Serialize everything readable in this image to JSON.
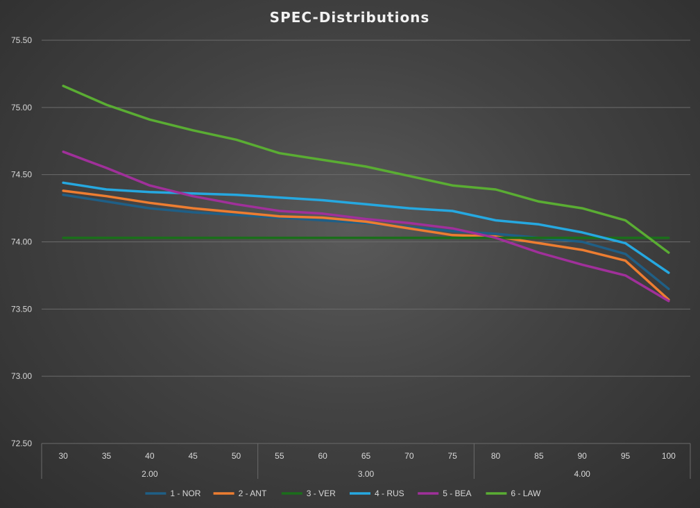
{
  "chart_data": {
    "type": "line",
    "title": "SPEC-Distributions",
    "xlabel": "",
    "ylabel": "",
    "ylim": [
      72.5,
      75.5
    ],
    "yticks": [
      "72.50",
      "73.00",
      "73.50",
      "74.00",
      "74.50",
      "75.00",
      "75.50"
    ],
    "categories": [
      "30",
      "35",
      "40",
      "45",
      "50",
      "55",
      "60",
      "65",
      "70",
      "75",
      "80",
      "85",
      "90",
      "95",
      "100"
    ],
    "groups": [
      {
        "label": "2.00",
        "start": 0,
        "end": 4
      },
      {
        "label": "3.00",
        "start": 5,
        "end": 9
      },
      {
        "label": "4.00",
        "start": 10,
        "end": 14
      }
    ],
    "grid": true,
    "legend_position": "bottom",
    "series": [
      {
        "name": "1 - NOR",
        "color": "#1f5f86",
        "values": [
          74.35,
          74.3,
          74.25,
          74.22,
          74.2,
          74.18,
          74.16,
          74.14,
          74.11,
          74.08,
          74.06,
          74.03,
          74.0,
          73.91,
          73.65
        ]
      },
      {
        "name": "2 - ANT",
        "color": "#ed7d31",
        "values": [
          74.38,
          74.34,
          74.29,
          74.25,
          74.22,
          74.19,
          74.18,
          74.15,
          74.1,
          74.05,
          74.04,
          73.99,
          73.94,
          73.86,
          73.57
        ]
      },
      {
        "name": "3 - VER",
        "color": "#1b6e1b",
        "values": [
          74.03,
          74.03,
          74.03,
          74.03,
          74.03,
          74.03,
          74.03,
          74.03,
          74.03,
          74.03,
          74.03,
          74.03,
          74.03,
          74.03,
          74.03
        ]
      },
      {
        "name": "4 - RUS",
        "color": "#26a8e0",
        "values": [
          74.44,
          74.39,
          74.37,
          74.36,
          74.35,
          74.33,
          74.31,
          74.28,
          74.25,
          74.23,
          74.16,
          74.13,
          74.07,
          73.99,
          73.77
        ]
      },
      {
        "name": "5 - BEA",
        "color": "#a0309a",
        "values": [
          74.67,
          74.55,
          74.42,
          74.34,
          74.28,
          74.23,
          74.21,
          74.17,
          74.14,
          74.1,
          74.03,
          73.92,
          73.83,
          73.75,
          73.56
        ]
      },
      {
        "name": "6 - LAW",
        "color": "#5aad33",
        "values": [
          75.16,
          75.02,
          74.91,
          74.83,
          74.76,
          74.66,
          74.61,
          74.56,
          74.49,
          74.42,
          74.39,
          74.3,
          74.25,
          74.16,
          73.92
        ]
      }
    ]
  }
}
